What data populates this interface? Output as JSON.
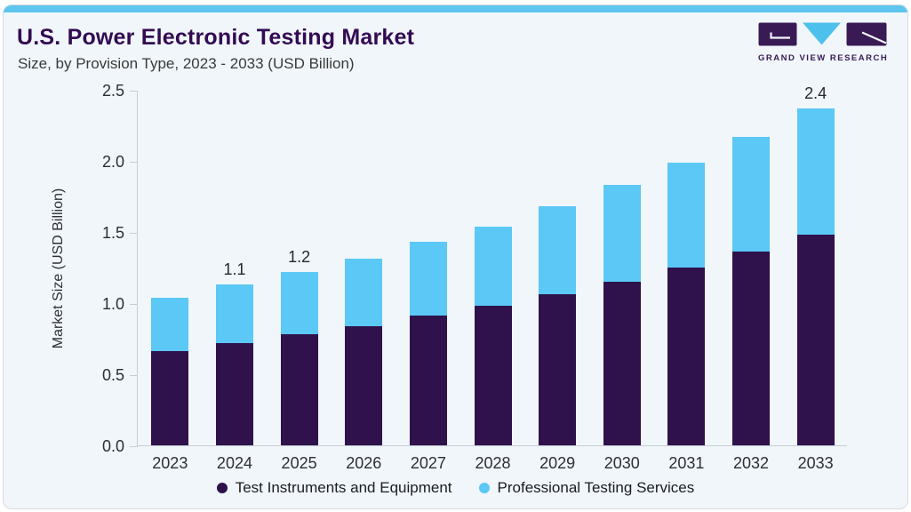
{
  "header": {
    "title": "U.S. Power Electronic Testing Market",
    "subtitle": "Size, by Provision Type, 2023 - 2033 (USD Billion)"
  },
  "logo": {
    "caption": "GRAND VIEW RESEARCH"
  },
  "colors": {
    "accent_strip": "#5EC5EF",
    "instruments": "#2F114B",
    "services": "#5BC8F5",
    "title_text": "#330B52",
    "axis_line": "#C7CDD4",
    "card_bg": "#F0F6FA",
    "card_border": "#D6DBE1"
  },
  "chart_data": {
    "type": "bar",
    "stacked": true,
    "title": "U.S. Power Electronic Testing Market",
    "subtitle": "Size, by Provision Type, 2023 - 2033 (USD Billion)",
    "categories": [
      "2023",
      "2024",
      "2025",
      "2026",
      "2027",
      "2028",
      "2029",
      "2030",
      "2031",
      "2032",
      "2033"
    ],
    "series": [
      {
        "name": "Test Instruments and Equipment",
        "color": "#2F114B",
        "values": [
          0.66,
          0.72,
          0.78,
          0.84,
          0.91,
          0.98,
          1.06,
          1.15,
          1.25,
          1.36,
          1.48
        ]
      },
      {
        "name": "Professional Testing Services",
        "color": "#5BC8F5",
        "values": [
          0.38,
          0.41,
          0.44,
          0.47,
          0.52,
          0.56,
          0.62,
          0.68,
          0.74,
          0.81,
          0.89
        ]
      }
    ],
    "totals": [
      1.04,
      1.13,
      1.22,
      1.31,
      1.43,
      1.54,
      1.68,
      1.83,
      1.99,
      2.17,
      2.37
    ],
    "total_labels": {
      "2024": "1.1",
      "2025": "1.2",
      "2033": "2.4"
    },
    "ylabel": "Market Size (USD Billion)",
    "xlabel": "",
    "yticks": [
      0.0,
      0.5,
      1.0,
      1.5,
      2.0,
      2.5
    ],
    "ylim": [
      0,
      2.5
    ],
    "grid": false,
    "legend_position": "bottom"
  }
}
